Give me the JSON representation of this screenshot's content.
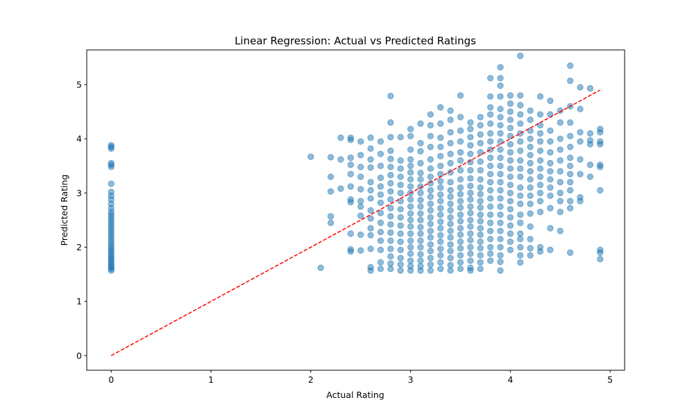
{
  "chart_data": {
    "type": "scatter",
    "title": "Linear Regression: Actual vs Predicted Ratings",
    "xlabel": "Actual Rating",
    "ylabel": "Predicted Rating",
    "xlim": [
      -0.245,
      5.145
    ],
    "ylim": [
      -0.27,
      5.64
    ],
    "x_ticks": [
      0,
      1,
      2,
      3,
      4,
      5
    ],
    "y_ticks": [
      0,
      1,
      2,
      3,
      4,
      5
    ],
    "grid": false,
    "colors": {
      "points": "#1f77b4",
      "fit_line": "#ff0000"
    },
    "fit_line": {
      "style": "dashed",
      "points": [
        [
          0,
          0
        ],
        [
          4.9,
          4.9
        ]
      ]
    },
    "series": [
      {
        "values_by_x": [
          [
            0,
            [
              1.57,
              1.6,
              1.63,
              1.66,
              1.7,
              1.73,
              1.77,
              1.8,
              1.84,
              1.88,
              1.92,
              1.96,
              2.0,
              2.05,
              2.1,
              2.15,
              2.2,
              2.25,
              2.3,
              2.35,
              2.4,
              2.45,
              2.5,
              2.55,
              2.6,
              2.65,
              2.72,
              2.8,
              2.88,
              2.95,
              3.02,
              3.17,
              3.48,
              3.52,
              3.55,
              3.82,
              3.85,
              3.88
            ]
          ],
          [
            2.0,
            [
              3.67
            ]
          ],
          [
            2.1,
            [
              1.62
            ]
          ],
          [
            2.2,
            [
              2.45,
              2.57,
              3.03,
              3.3,
              3.66
            ]
          ],
          [
            2.3,
            [
              3.08,
              3.62,
              4.02
            ]
          ],
          [
            2.4,
            [
              1.92,
              1.96,
              2.25,
              2.83,
              2.88,
              3.12,
              3.35,
              3.52,
              3.65,
              3.98,
              4.02
            ]
          ],
          [
            2.5,
            [
              1.94,
              2.23,
              2.58,
              2.75,
              2.85,
              3.07,
              3.3,
              3.48,
              3.7,
              3.95
            ]
          ],
          [
            2.6,
            [
              1.57,
              1.63,
              1.97,
              2.22,
              2.35,
              2.53,
              2.68,
              2.9,
              3.05,
              3.2,
              3.47,
              3.62,
              3.82,
              4.02
            ]
          ],
          [
            2.7,
            [
              1.6,
              1.72,
              1.95,
              2.12,
              2.28,
              2.45,
              2.63,
              2.82,
              2.97,
              3.12,
              3.28,
              3.5,
              3.72,
              3.95
            ]
          ],
          [
            2.8,
            [
              1.6,
              1.7,
              1.83,
              1.97,
              2.12,
              2.27,
              2.42,
              2.57,
              2.72,
              2.88,
              3.03,
              3.18,
              3.33,
              3.48,
              3.63,
              3.78,
              4.03,
              4.3,
              4.79
            ]
          ],
          [
            2.9,
            [
              1.57,
              1.68,
              1.8,
              1.95,
              2.1,
              2.25,
              2.4,
              2.55,
              2.7,
              2.85,
              3.0,
              3.15,
              3.3,
              3.45,
              3.6,
              4.03
            ]
          ],
          [
            3.0,
            [
              1.57,
              1.65,
              1.75,
              1.88,
              2.0,
              2.12,
              2.25,
              2.38,
              2.5,
              2.62,
              2.75,
              2.88,
              3.0,
              3.12,
              3.25,
              3.38,
              3.5,
              3.62,
              3.8,
              4.05,
              4.18
            ]
          ],
          [
            3.1,
            [
              1.57,
              1.65,
              1.75,
              1.87,
              2.0,
              2.12,
              2.25,
              2.37,
              2.5,
              2.62,
              2.75,
              2.87,
              3.0,
              3.12,
              3.25,
              3.37,
              3.55,
              3.77,
              3.92,
              4.28
            ]
          ],
          [
            3.2,
            [
              1.57,
              1.68,
              1.8,
              1.93,
              2.05,
              2.18,
              2.3,
              2.43,
              2.55,
              2.68,
              2.8,
              2.93,
              3.05,
              3.18,
              3.3,
              3.45,
              3.62,
              3.85,
              4.05,
              4.25,
              4.45
            ]
          ],
          [
            3.3,
            [
              1.6,
              1.72,
              1.85,
              1.97,
              2.1,
              2.22,
              2.35,
              2.47,
              2.6,
              2.72,
              2.85,
              2.97,
              3.1,
              3.22,
              3.35,
              3.5,
              3.68,
              3.85,
              4.02,
              4.28,
              4.58
            ]
          ],
          [
            3.4,
            [
              1.57,
              1.67,
              1.8,
              1.93,
              2.05,
              2.18,
              2.3,
              2.43,
              2.55,
              2.68,
              2.8,
              2.93,
              3.05,
              3.2,
              3.38,
              3.55,
              3.72,
              3.92,
              4.12,
              4.35,
              4.52
            ]
          ],
          [
            3.5,
            [
              1.6,
              1.72,
              1.85,
              1.98,
              2.1,
              2.23,
              2.35,
              2.48,
              2.6,
              2.73,
              2.85,
              2.98,
              3.1,
              3.25,
              3.42,
              3.6,
              3.75,
              3.95,
              4.15,
              4.4,
              4.8
            ]
          ],
          [
            3.6,
            [
              1.57,
              1.62,
              1.75,
              1.88,
              2.0,
              2.13,
              2.25,
              2.38,
              2.5,
              2.63,
              2.75,
              2.88,
              3.0,
              3.13,
              3.27,
              3.42,
              3.57,
              3.72,
              3.88,
              4.03,
              4.18,
              4.3
            ]
          ],
          [
            3.7,
            [
              1.6,
              1.72,
              1.85,
              1.98,
              2.1,
              2.23,
              2.35,
              2.48,
              2.6,
              2.73,
              2.85,
              2.98,
              3.1,
              3.25,
              3.42,
              3.58,
              3.75,
              3.92,
              4.08,
              4.25,
              4.4
            ]
          ],
          [
            3.8,
            [
              1.75,
              1.88,
              2.0,
              2.15,
              2.3,
              2.45,
              2.6,
              2.75,
              2.9,
              3.05,
              3.2,
              3.35,
              3.5,
              3.65,
              3.8,
              3.95,
              4.1,
              4.28,
              4.45,
              4.58,
              4.78,
              5.12
            ]
          ],
          [
            3.9,
            [
              1.57,
              1.73,
              1.85,
              2.0,
              2.15,
              2.3,
              2.45,
              2.6,
              2.75,
              2.9,
              3.05,
              3.2,
              3.35,
              3.5,
              3.65,
              3.8,
              3.95,
              4.1,
              4.25,
              4.4,
              4.55,
              4.78,
              4.98,
              5.12,
              5.32
            ]
          ],
          [
            4.0,
            [
              1.95,
              2.1,
              2.25,
              2.4,
              2.55,
              2.7,
              2.85,
              3.0,
              3.15,
              3.3,
              3.45,
              3.6,
              3.75,
              3.9,
              4.05,
              4.2,
              4.35,
              4.5,
              4.65,
              4.8
            ]
          ],
          [
            4.1,
            [
              1.72,
              1.85,
              2.0,
              2.15,
              2.25,
              2.45,
              2.6,
              2.8,
              2.95,
              3.1,
              3.3,
              3.45,
              3.6,
              3.78,
              3.95,
              4.1,
              4.28,
              4.45,
              4.62,
              4.8,
              5.53
            ]
          ],
          [
            4.2,
            [
              1.85,
              1.98,
              2.15,
              2.38,
              2.62,
              2.8,
              2.95,
              3.1,
              3.25,
              3.4,
              3.55,
              3.7,
              3.85,
              4.0,
              4.15,
              4.35,
              4.52
            ]
          ],
          [
            4.3,
            [
              1.92,
              2.0,
              2.65,
              2.85,
              3.0,
              3.15,
              3.3,
              3.45,
              3.6,
              3.78,
              3.95,
              4.1,
              4.25,
              4.45,
              4.78
            ]
          ],
          [
            4.4,
            [
              1.95,
              2.35,
              2.72,
              2.95,
              3.1,
              3.25,
              3.4,
              3.55,
              3.75,
              3.95,
              4.15,
              4.45,
              4.7
            ]
          ],
          [
            4.5,
            [
              2.3,
              2.65,
              2.85,
              3.0,
              3.2,
              3.4,
              3.6,
              3.8,
              4.0,
              4.3,
              4.52
            ]
          ],
          [
            4.6,
            [
              1.9,
              2.72,
              2.85,
              3.05,
              3.2,
              3.35,
              3.5,
              3.65,
              3.85,
              4.05,
              4.3,
              4.6,
              5.07,
              5.35
            ]
          ],
          [
            4.7,
            [
              2.85,
              2.92,
              3.35,
              3.62,
              3.95,
              4.12,
              4.55,
              4.95
            ]
          ],
          [
            4.8,
            [
              3.3,
              3.52,
              3.9,
              3.97,
              4.1,
              4.93
            ]
          ],
          [
            4.9,
            [
              1.78,
              1.9,
              1.95,
              3.05,
              3.48,
              3.52,
              3.9,
              3.95,
              4.12,
              4.18
            ]
          ]
        ]
      }
    ]
  }
}
